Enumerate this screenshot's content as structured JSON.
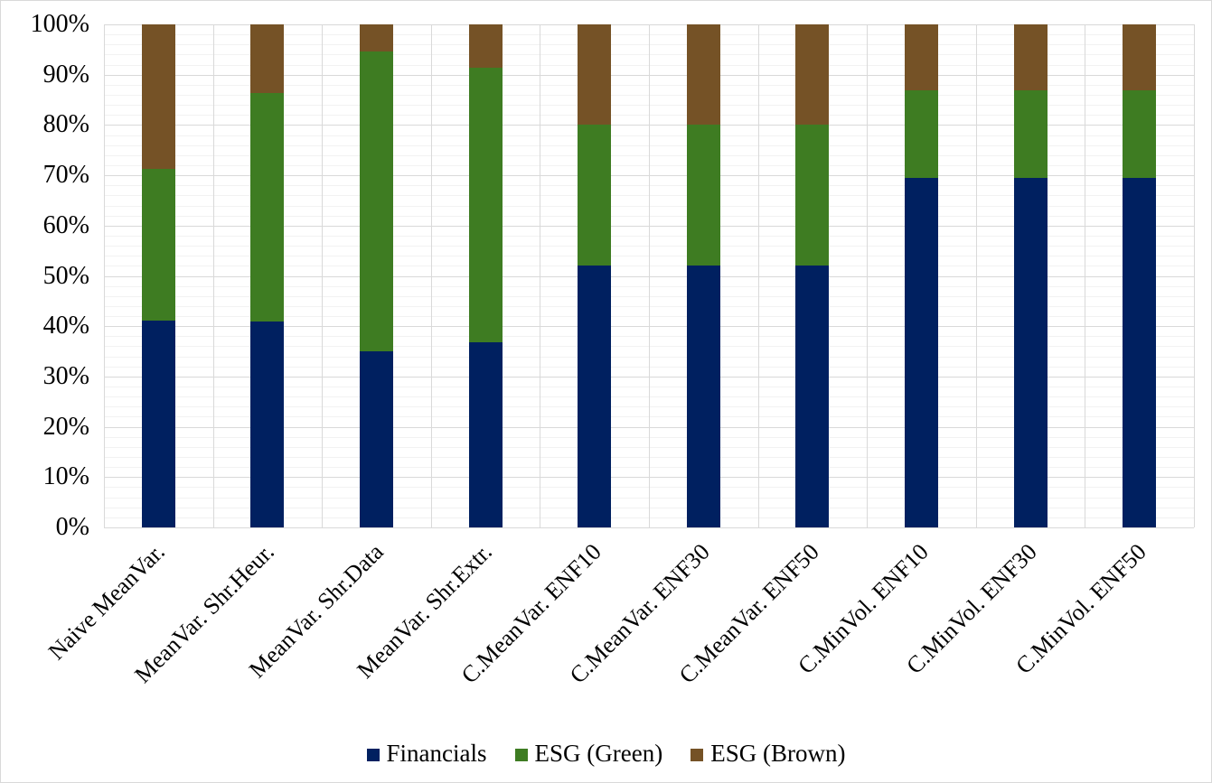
{
  "chart_data": {
    "type": "bar",
    "stacked": true,
    "stacked_mode": "percent",
    "title": "",
    "xlabel": "",
    "ylabel": "",
    "ylim": [
      0,
      100
    ],
    "y_major_step": 10,
    "y_minor_step": 2,
    "grid": true,
    "legend_position": "bottom",
    "y_ticks": [
      "0%",
      "10%",
      "20%",
      "30%",
      "40%",
      "50%",
      "60%",
      "70%",
      "80%",
      "90%",
      "100%"
    ],
    "categories": [
      "Naive MeanVar.",
      "MeanVar. Shr.Heur.",
      "MeanVar. Shr.Data",
      "MeanVar. Shr.Extr.",
      "C.MeanVar. ENF10",
      "C.MeanVar. ENF30",
      "C.MeanVar. ENF50",
      "C.MinVol. ENF10",
      "C.MinVol. ENF30",
      "C.MinVol. ENF50"
    ],
    "series": [
      {
        "name": "Financials",
        "color": "#002060",
        "values": [
          41.1,
          41.0,
          35.0,
          36.8,
          52.0,
          52.0,
          52.0,
          69.5,
          69.4,
          69.4
        ]
      },
      {
        "name": "ESG (Green)",
        "color": "#3e7c22",
        "values": [
          30.2,
          45.4,
          59.7,
          54.6,
          28.0,
          28.0,
          28.0,
          17.4,
          17.5,
          17.5
        ]
      },
      {
        "name": "ESG (Brown)",
        "color": "#755226",
        "values": [
          28.7,
          13.6,
          5.3,
          8.6,
          20.0,
          20.0,
          20.0,
          13.1,
          13.1,
          13.1
        ]
      }
    ]
  },
  "colors": {
    "background": "#ffffff",
    "gridline_major": "#d9d9d9",
    "gridline_minor": "#f2f2f2",
    "text": "#000000"
  }
}
